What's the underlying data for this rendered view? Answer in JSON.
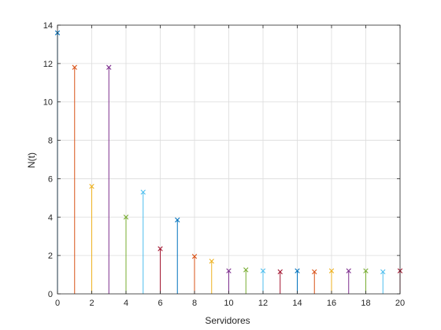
{
  "chart_data": {
    "type": "stem",
    "title": "",
    "xlabel": "Servidores",
    "ylabel": "N(t)",
    "xlim": [
      0,
      20
    ],
    "ylim": [
      0,
      14
    ],
    "grid": true,
    "marker": "x",
    "x_ticks": [
      0,
      2,
      4,
      6,
      8,
      10,
      12,
      14,
      16,
      18,
      20
    ],
    "y_ticks": [
      0,
      2,
      4,
      6,
      8,
      10,
      12,
      14
    ],
    "points": [
      {
        "x": 0,
        "y": 13.6,
        "color": "#0072BD"
      },
      {
        "x": 1,
        "y": 11.8,
        "color": "#D95319"
      },
      {
        "x": 2,
        "y": 5.6,
        "color": "#EDB120"
      },
      {
        "x": 3,
        "y": 11.8,
        "color": "#7E2F8E"
      },
      {
        "x": 4,
        "y": 4.0,
        "color": "#77AC30"
      },
      {
        "x": 5,
        "y": 5.3,
        "color": "#4DBEEE"
      },
      {
        "x": 6,
        "y": 2.35,
        "color": "#A2142F"
      },
      {
        "x": 7,
        "y": 3.85,
        "color": "#0072BD"
      },
      {
        "x": 8,
        "y": 1.95,
        "color": "#D95319"
      },
      {
        "x": 9,
        "y": 1.7,
        "color": "#EDB120"
      },
      {
        "x": 10,
        "y": 1.2,
        "color": "#7E2F8E"
      },
      {
        "x": 11,
        "y": 1.25,
        "color": "#77AC30"
      },
      {
        "x": 12,
        "y": 1.2,
        "color": "#4DBEEE"
      },
      {
        "x": 13,
        "y": 1.15,
        "color": "#A2142F"
      },
      {
        "x": 14,
        "y": 1.2,
        "color": "#0072BD"
      },
      {
        "x": 15,
        "y": 1.15,
        "color": "#D95319"
      },
      {
        "x": 16,
        "y": 1.2,
        "color": "#EDB120"
      },
      {
        "x": 17,
        "y": 1.2,
        "color": "#7E2F8E"
      },
      {
        "x": 18,
        "y": 1.2,
        "color": "#77AC30"
      },
      {
        "x": 19,
        "y": 1.15,
        "color": "#4DBEEE"
      },
      {
        "x": 20,
        "y": 1.2,
        "color": "#A2142F"
      }
    ]
  }
}
